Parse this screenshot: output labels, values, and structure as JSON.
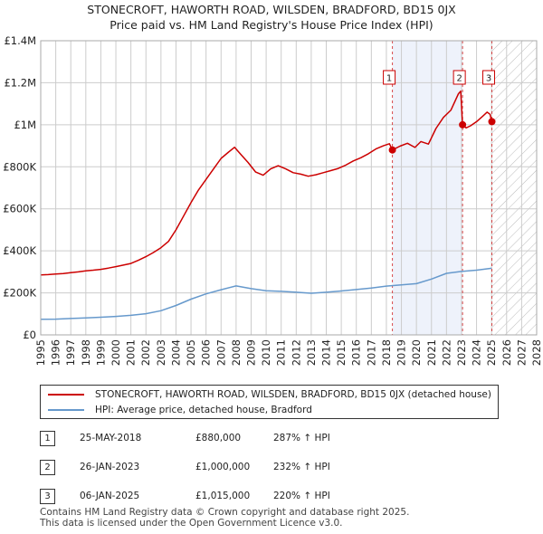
{
  "header": {
    "line1": "STONECROFT, HAWORTH ROAD, WILSDEN, BRADFORD, BD15 0JX",
    "line2": "Price paid vs. HM Land Registry's House Price Index (HPI)"
  },
  "colors": {
    "property": "#cc0000",
    "hpi": "#6699cc",
    "band": "#eef2fb",
    "marker_line": "#cc0000"
  },
  "legend": {
    "property_label": "STONECROFT, HAWORTH ROAD, WILSDEN, BRADFORD, BD15 0JX (detached house)",
    "hpi_label": "HPI: Average price, detached house, Bradford"
  },
  "sales": [
    {
      "num": "1",
      "date": "25-MAY-2018",
      "price": "£880,000",
      "hpi": "287% ↑ HPI"
    },
    {
      "num": "2",
      "date": "26-JAN-2023",
      "price": "£1,000,000",
      "hpi": "232% ↑ HPI"
    },
    {
      "num": "3",
      "date": "06-JAN-2025",
      "price": "£1,015,000",
      "hpi": "220% ↑ HPI"
    }
  ],
  "footer": {
    "line1": "Contains HM Land Registry data © Crown copyright and database right 2025.",
    "line2": "This data is licensed under the Open Government Licence v3.0."
  },
  "chart_data": {
    "type": "line",
    "title": "STONECROFT, HAWORTH ROAD, WILSDEN, BRADFORD, BD15 0JX",
    "subtitle": "Price paid vs. HM Land Registry's House Price Index (HPI)",
    "xlabel": "",
    "ylabel": "",
    "xlim": [
      1995,
      2028
    ],
    "ylim": [
      0,
      1400000
    ],
    "y_ticks": [
      {
        "value": 0,
        "label": "£0"
      },
      {
        "value": 200000,
        "label": "£200K"
      },
      {
        "value": 400000,
        "label": "£400K"
      },
      {
        "value": 600000,
        "label": "£600K"
      },
      {
        "value": 800000,
        "label": "£800K"
      },
      {
        "value": 1000000,
        "label": "£1M"
      },
      {
        "value": 1200000,
        "label": "£1.2M"
      },
      {
        "value": 1400000,
        "label": "£1.4M"
      }
    ],
    "x_ticks": [
      "1995",
      "1996",
      "1997",
      "1998",
      "1999",
      "2000",
      "2001",
      "2002",
      "2003",
      "2004",
      "2005",
      "2006",
      "2007",
      "2008",
      "2009",
      "2010",
      "2011",
      "2012",
      "2013",
      "2014",
      "2015",
      "2016",
      "2017",
      "2018",
      "2019",
      "2020",
      "2021",
      "2022",
      "2023",
      "2024",
      "2025",
      "2026",
      "2027",
      "2028"
    ],
    "grid": true,
    "shaded_period": [
      2018.4,
      2023.07
    ],
    "hatched_future_from": 2025.05,
    "series": [
      {
        "name": "STONECROFT, HAWORTH ROAD, WILSDEN, BRADFORD, BD15 0JX (detached house)",
        "color": "#cc0000",
        "x": [
          1995,
          1995.5,
          1996,
          1996.5,
          1997,
          1997.5,
          1998,
          1998.5,
          1999,
          1999.5,
          2000,
          2000.5,
          2001,
          2001.5,
          2002,
          2002.5,
          2003,
          2003.5,
          2004,
          2004.5,
          2005,
          2005.5,
          2006,
          2006.5,
          2007,
          2007.5,
          2007.9,
          2008.3,
          2008.8,
          2009.3,
          2009.8,
          2010.3,
          2010.8,
          2011.3,
          2011.8,
          2012.3,
          2012.8,
          2013.3,
          2013.8,
          2014.3,
          2014.8,
          2015.3,
          2015.8,
          2016.3,
          2016.8,
          2017.3,
          2017.8,
          2018.2,
          2018.4,
          2018.9,
          2019.4,
          2019.9,
          2020.3,
          2020.8,
          2021.3,
          2021.8,
          2022.3,
          2022.8,
          2022.95,
          2023.07,
          2023.3,
          2023.6,
          2024.0,
          2024.4,
          2024.7,
          2024.9,
          2025.0
        ],
        "values": [
          285000,
          287000,
          290000,
          292000,
          296000,
          300000,
          305000,
          308000,
          312000,
          318000,
          325000,
          332000,
          340000,
          355000,
          372000,
          392000,
          415000,
          445000,
          500000,
          565000,
          630000,
          690000,
          740000,
          790000,
          840000,
          870000,
          893000,
          860000,
          820000,
          775000,
          760000,
          790000,
          805000,
          790000,
          772000,
          765000,
          755000,
          762000,
          772000,
          782000,
          792000,
          808000,
          828000,
          843000,
          862000,
          885000,
          900000,
          910000,
          880000,
          898000,
          912000,
          892000,
          920000,
          908000,
          982000,
          1035000,
          1070000,
          1148000,
          1160000,
          1000000,
          985000,
          995000,
          1015000,
          1040000,
          1060000,
          1050000,
          1015000
        ]
      },
      {
        "name": "HPI: Average price, detached house, Bradford",
        "color": "#6699cc",
        "x": [
          1995,
          1996,
          1997,
          1998,
          1999,
          2000,
          2001,
          2002,
          2003,
          2004,
          2005,
          2006,
          2007,
          2008,
          2009,
          2010,
          2011,
          2012,
          2013,
          2014,
          2015,
          2016,
          2017,
          2018,
          2019,
          2020,
          2021,
          2022,
          2023,
          2024,
          2025
        ],
        "values": [
          74000,
          75000,
          78000,
          81000,
          84000,
          88000,
          93000,
          101000,
          115000,
          140000,
          170000,
          195000,
          215000,
          233000,
          220000,
          210000,
          207000,
          203000,
          198000,
          203000,
          209000,
          216000,
          223000,
          232000,
          238000,
          244000,
          266000,
          293000,
          302000,
          308000,
          317000
        ]
      }
    ],
    "sale_markers": [
      {
        "label": "1",
        "x": 2018.4,
        "value": 880000
      },
      {
        "label": "2",
        "x": 2023.07,
        "value": 1000000
      },
      {
        "label": "3",
        "x": 2025.02,
        "value": 1015000
      }
    ]
  }
}
